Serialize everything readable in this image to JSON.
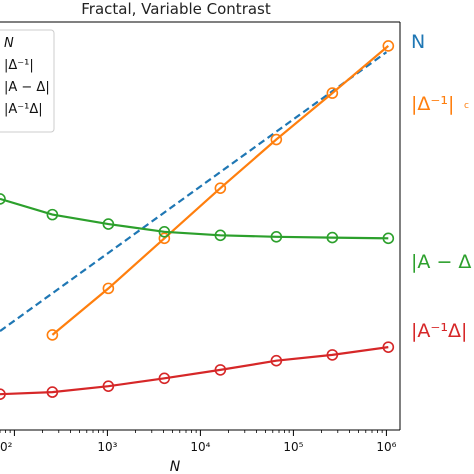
{
  "chart_data": {
    "type": "line",
    "title": "Fractal, Variable Contrast",
    "xlabel": "N",
    "ylabel": "",
    "xscale": "log",
    "yscale": "log",
    "xlim": [
      70,
      1400000
    ],
    "ylim": [
      0.3,
      300
    ],
    "x_ticks": [
      {
        "value": 100,
        "label": "10²",
        "clipped_label": "0²"
      },
      {
        "value": 1000,
        "label": "10³"
      },
      {
        "value": 10000,
        "label": "10⁴"
      },
      {
        "value": 100000,
        "label": "10⁵"
      },
      {
        "value": 1000000,
        "label": "10⁶"
      }
    ],
    "grid": false,
    "legend": {
      "placement": "top-left",
      "entries": [
        "N",
        "|Δ⁻¹|",
        "|A − Δ|",
        "|A⁻¹Δ|"
      ]
    },
    "series": [
      {
        "name": "N",
        "color": "#1f77b4",
        "style": "dashed",
        "marker": "none",
        "x": [
          70,
          1000000
        ],
        "y": [
          1.6,
          180
        ]
      },
      {
        "name": "|Δ⁻¹|",
        "color": "#ff7f0e",
        "style": "solid",
        "marker": "open-circle",
        "x": [
          256,
          1024,
          4096,
          16384,
          65536,
          262144,
          1048576
        ],
        "y": [
          1.5,
          3.3,
          7.7,
          18,
          41,
          90,
          200
        ]
      },
      {
        "name": "|A − Δ|",
        "color": "#2ca02c",
        "style": "solid",
        "marker": "open-circle",
        "x": [
          70,
          256,
          1024,
          4096,
          16384,
          65536,
          262144,
          1048576
        ],
        "y": [
          15,
          11.5,
          9.8,
          8.6,
          8.1,
          7.9,
          7.8,
          7.7
        ]
      },
      {
        "name": "|A⁻¹Δ|",
        "color": "#d62728",
        "style": "solid",
        "marker": "open-circle",
        "x": [
          70,
          256,
          1024,
          4096,
          16384,
          65536,
          262144,
          1048576
        ],
        "y": [
          0.55,
          0.57,
          0.63,
          0.72,
          0.83,
          0.97,
          1.07,
          1.22
        ]
      }
    ],
    "side_labels": [
      {
        "text": "N",
        "series": "N"
      },
      {
        "text": "|Δ⁻¹|",
        "series": "|Δ⁻¹|",
        "suffix": "c"
      },
      {
        "text": "|A − Δ",
        "series": "|A − Δ|"
      },
      {
        "text": "|A⁻¹Δ|",
        "series": "|A⁻¹Δ|"
      }
    ]
  }
}
